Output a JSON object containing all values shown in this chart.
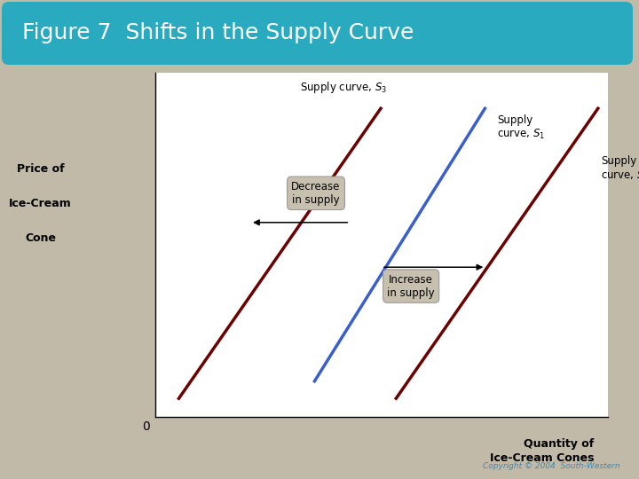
{
  "title": "Figure 7  Shifts in the Supply Curve",
  "title_bg_color": "#29AABF",
  "title_text_color": "white",
  "title_fontsize": 18,
  "bg_color": "#C2BAA8",
  "plot_bg_color": "white",
  "ylabel_line1": "Price of",
  "ylabel_line2": "Ice-Cream",
  "ylabel_line3": "Cone",
  "xlabel_line1": "Quantity of",
  "xlabel_line2": "Ice-Cream Cones",
  "copyright": "Copyright © 2004  South-Western",
  "s1_color": "#3A5FCD",
  "s2_color": "#6B0000",
  "s3_color": "#6B0000",
  "box_facecolor": "#C8C0AF",
  "box_edgecolor": "#999999"
}
